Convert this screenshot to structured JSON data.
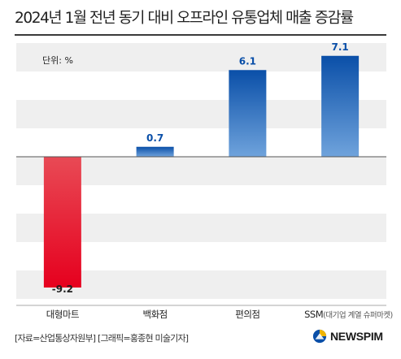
{
  "title": "2024년 1월 전년 동기 대비 오프라인 유통업체 매출 증감률",
  "unit_label": "단위: %",
  "source": "[자료=산업통상자원부] [그래픽=홍종현 미술기자]",
  "brand": "NEWSPIM",
  "colors": {
    "negative_top": "#e84a55",
    "negative_bottom": "#e6001e",
    "positive_top": "#0a4fa8",
    "positive_bottom": "#6fa3dc",
    "band": "#efefef"
  },
  "chart_data": {
    "type": "bar",
    "categories": [
      "대형마트",
      "백화점",
      "편의점",
      "SSM"
    ],
    "category_note": "(대기업 계열 슈퍼마켓)",
    "values": [
      -9.2,
      0.7,
      6.1,
      7.1
    ],
    "value_labels": [
      "-9.2",
      "0.7",
      "6.1",
      "7.1"
    ],
    "ylim": [
      -10,
      8
    ],
    "grid": true,
    "legend": "none"
  }
}
